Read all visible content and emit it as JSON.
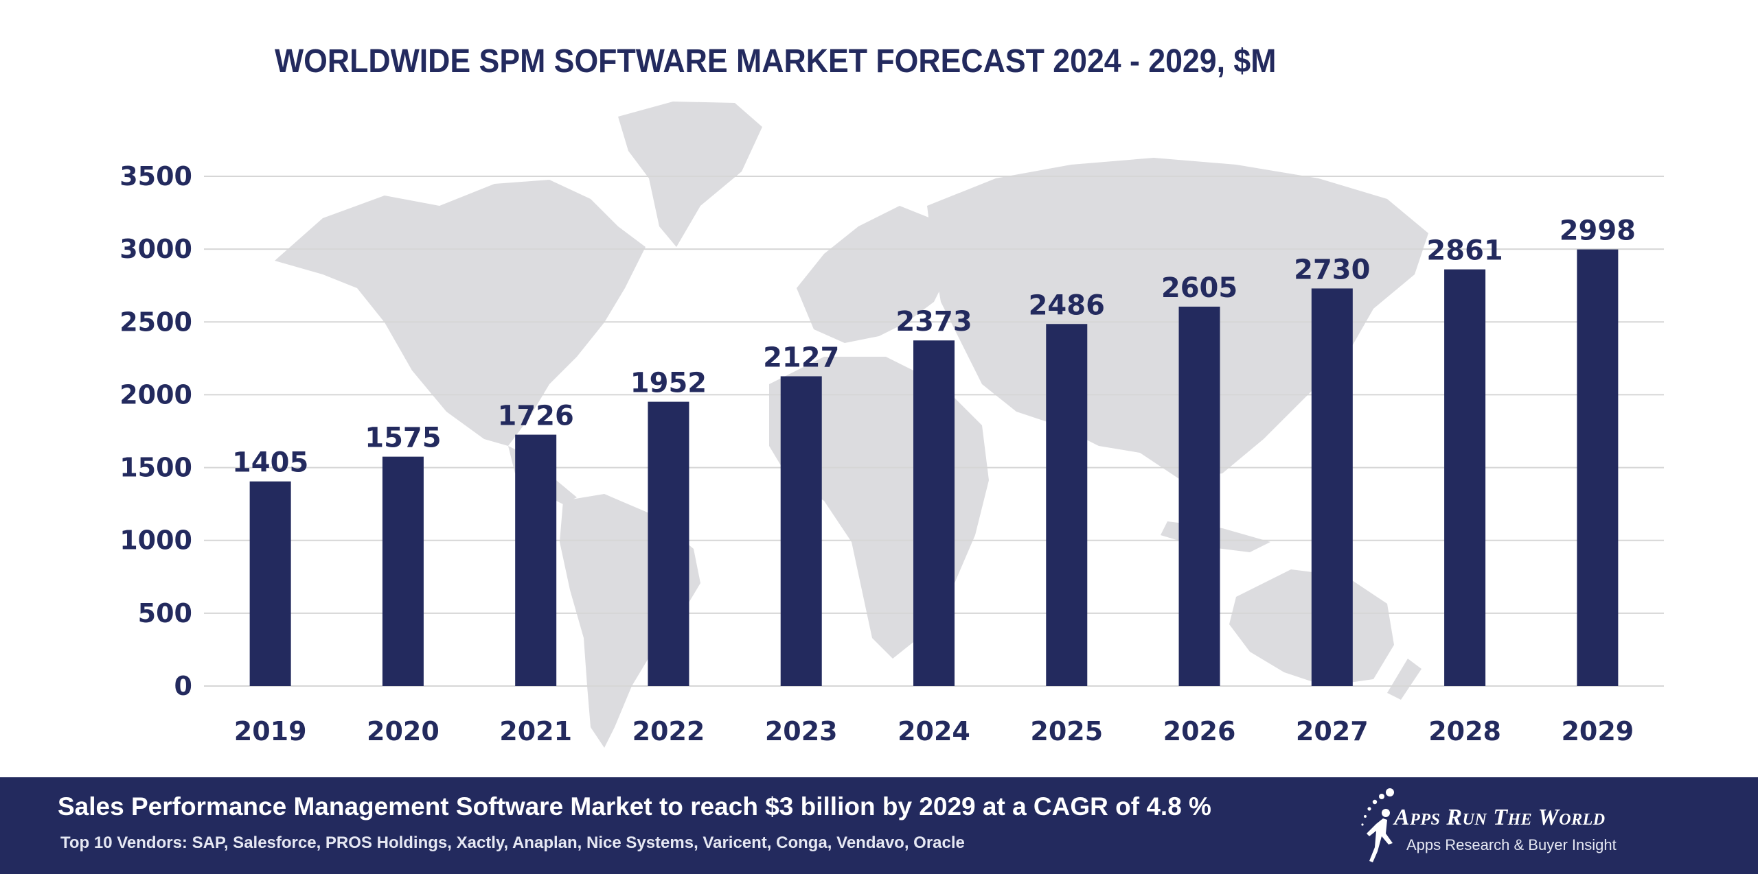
{
  "footer": {
    "headline": "Sales Performance Management Software Market to reach $3 billion by 2029 at a CAGR of 4.8 %",
    "vendors": "Top 10 Vendors: SAP, Salesforce, PROS Holdings, Xactly, Anaplan, Nice Systems, Varicent, Conga, Vendavo, Oracle",
    "brand_name": "Apps Run The World",
    "brand_tagline": "Apps Research & Buyer Insight",
    "brand_icon": "runner-swoosh-icon"
  },
  "chart_data": {
    "type": "bar",
    "title": "WORLDWIDE SPM SOFTWARE MARKET FORECAST 2024 - 2029, $M",
    "categories": [
      "2019",
      "2020",
      "2021",
      "2022",
      "2023",
      "2024",
      "2025",
      "2026",
      "2027",
      "2028",
      "2029"
    ],
    "values": [
      1405,
      1575,
      1726,
      1952,
      2127,
      2373,
      2486,
      2605,
      2730,
      2861,
      2998
    ],
    "ylim": [
      0,
      3500
    ],
    "yticks": [
      0,
      500,
      1000,
      1500,
      2000,
      2500,
      3000,
      3500
    ],
    "grid": true,
    "legend": "none",
    "background": "world-map",
    "colors": {
      "bar": "#232a5e",
      "text": "#232a5e",
      "grid": "#d6d6d6",
      "map": "#dcdcdf",
      "footer": "#232a5e"
    }
  }
}
